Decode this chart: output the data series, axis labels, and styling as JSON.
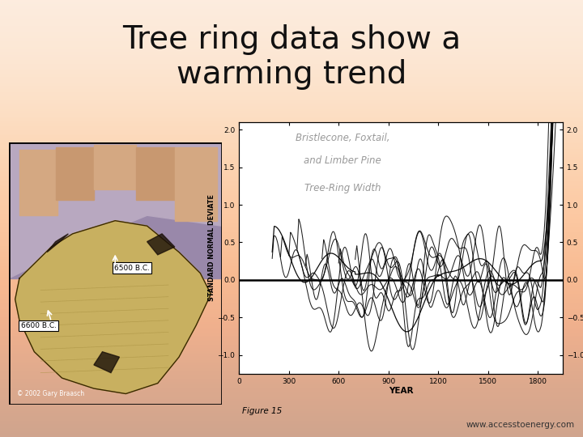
{
  "title_line1": "Tree ring data show a",
  "title_line2": "warming trend",
  "title_fontsize": 28,
  "title_color": "#111111",
  "slide_bg": "#f7d5c0",
  "grad_top": "#fdf0e8",
  "grad_bottom": "#f0a080",
  "chart_title_line1": "Bristlecone, Foxtail,",
  "chart_title_line2": "and Limber Pine",
  "chart_subtitle": "Tree-Ring Width",
  "chart_ylabel": "STANDARD NORMAL DEVIATE",
  "chart_xlabel": "YEAR",
  "chart_ylim": [
    -1.25,
    2.1
  ],
  "chart_xlim": [
    0,
    1950
  ],
  "chart_xticks": [
    0,
    300,
    600,
    900,
    1200,
    1500,
    1800
  ],
  "chart_yticks": [
    -1.0,
    -0.5,
    0.0,
    0.5,
    1.0,
    1.5,
    2.0
  ],
  "figure_caption": "Figure 15",
  "watermark": "www.accesstoenergy.com",
  "photo_label1": "6500 B.C.",
  "photo_label2": "6600 B.C.",
  "copyright": "© 2002 Gary Braasch"
}
